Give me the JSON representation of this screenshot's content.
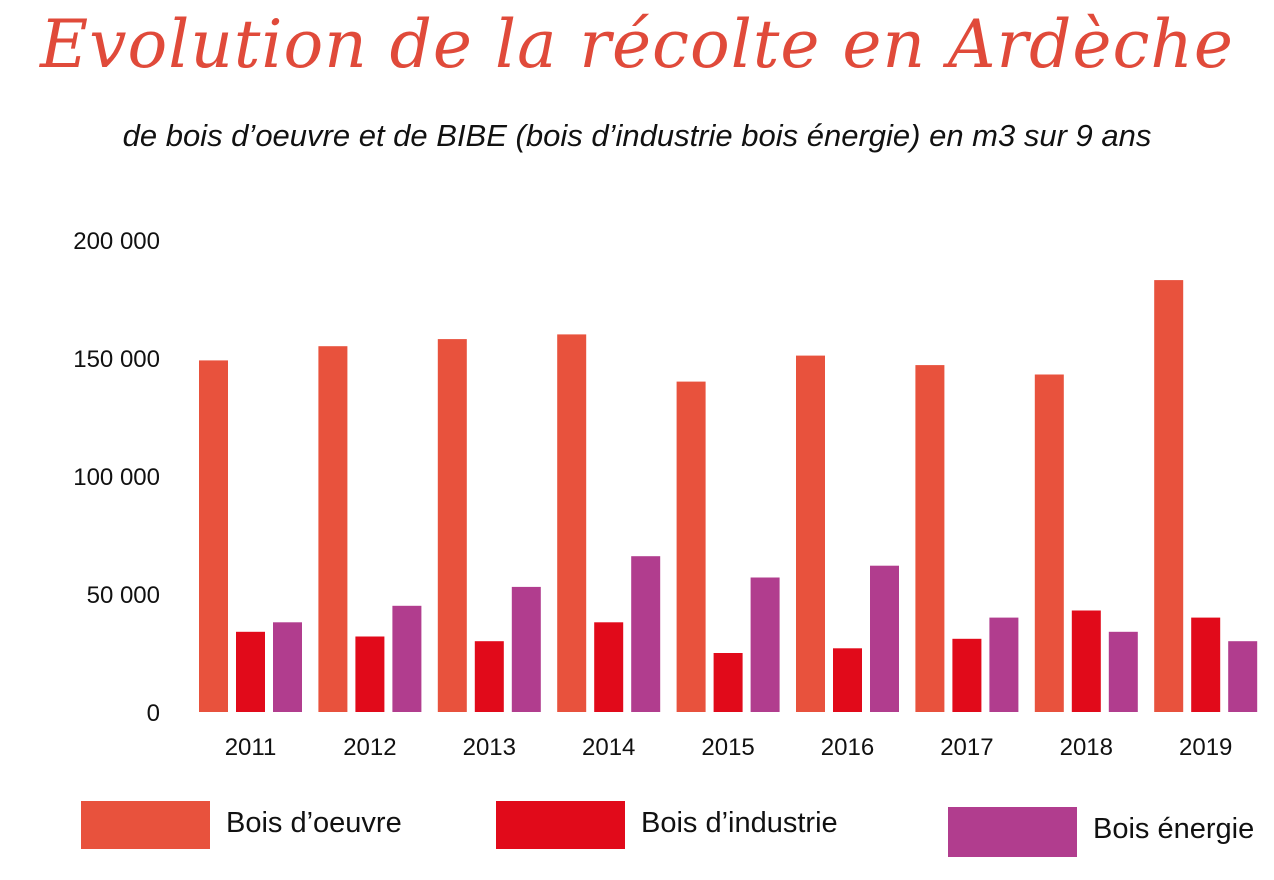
{
  "chart_data": {
    "type": "bar",
    "title": "Evolution de la récolte en Ardèche",
    "subtitle": "de bois d’oeuvre et de BIBE (bois d’industrie bois énergie) en m3 sur 9 ans",
    "xlabel": "",
    "ylabel": "",
    "categories": [
      "2011",
      "2012",
      "2013",
      "2014",
      "2015",
      "2016",
      "2017",
      "2018",
      "2019"
    ],
    "series": [
      {
        "name": "Bois d’oeuvre",
        "color": "#e8523d",
        "values": [
          149000,
          155000,
          158000,
          160000,
          140000,
          151000,
          147000,
          143000,
          183000
        ]
      },
      {
        "name": "Bois d’industrie",
        "color": "#e10a1a",
        "values": [
          34000,
          32000,
          30000,
          38000,
          25000,
          27000,
          31000,
          43000,
          40000
        ]
      },
      {
        "name": "Bois énergie",
        "color": "#b13d8e",
        "values": [
          38000,
          45000,
          53000,
          66000,
          57000,
          62000,
          40000,
          34000,
          30000
        ]
      }
    ],
    "ylim": [
      0,
      200000
    ],
    "yticks": [
      0,
      50000,
      100000,
      150000,
      200000
    ],
    "ytick_labels": [
      "0",
      "50 000",
      "100 000",
      "150 000",
      "200 000"
    ],
    "grid": false,
    "legend": "bottom"
  }
}
